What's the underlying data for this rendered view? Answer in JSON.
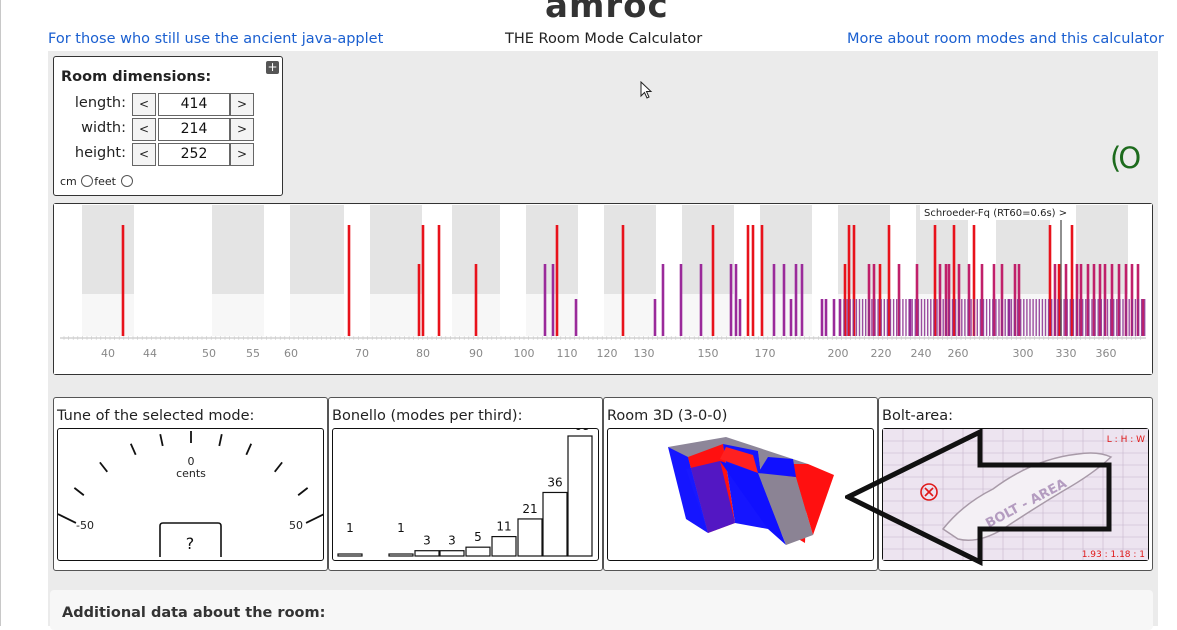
{
  "header": {
    "logo": "amroc",
    "left_link": "For those who still use the ancient java-applet",
    "subtitle": "THE Room Mode Calculator",
    "right_link": "More about room modes and this calculator"
  },
  "dimensions": {
    "title": "Room dimensions:",
    "rows": [
      {
        "label": "length:",
        "value": "414"
      },
      {
        "label": "width:",
        "value": "214"
      },
      {
        "label": "height:",
        "value": "252"
      }
    ],
    "dec_label": "<",
    "inc_label": ">",
    "unit_cm": "cm",
    "unit_feet": "feet",
    "toggle_label": "+"
  },
  "status_glyph": "(O",
  "spectrum": {
    "schroeder_label": "Schroeder-Fq (RT60=0.6s) >",
    "ticks": [
      "40",
      "44",
      "50",
      "55",
      "60",
      "70",
      "80",
      "90",
      "100",
      "110",
      "120",
      "130",
      "150",
      "170",
      "200",
      "220",
      "240",
      "260",
      "300",
      "330",
      "360"
    ]
  },
  "tune": {
    "title": "Tune of the selected mode:",
    "value": "0",
    "unit": "cents",
    "min": "-50",
    "max": "50",
    "readout": "?"
  },
  "bonello": {
    "title": "Bonello (modes per third):",
    "counts": [
      1,
      1,
      3,
      3,
      5,
      11,
      21,
      36,
      68
    ]
  },
  "room3d": {
    "title": "Room 3D (3-0-0)"
  },
  "bolt": {
    "title": "Bolt-area:",
    "ratio_label": "L : H : W",
    "ratio_value": "1.93 : 1.18 : 1",
    "area_text": "BOLT - AREA"
  },
  "additional": {
    "title": "Additional data about the room:"
  },
  "colors": {
    "link": "#1a5fd0",
    "mode_red": "#e8121b",
    "mode_purple": "#9a2a9a",
    "status_green": "#1d6b1d"
  }
}
